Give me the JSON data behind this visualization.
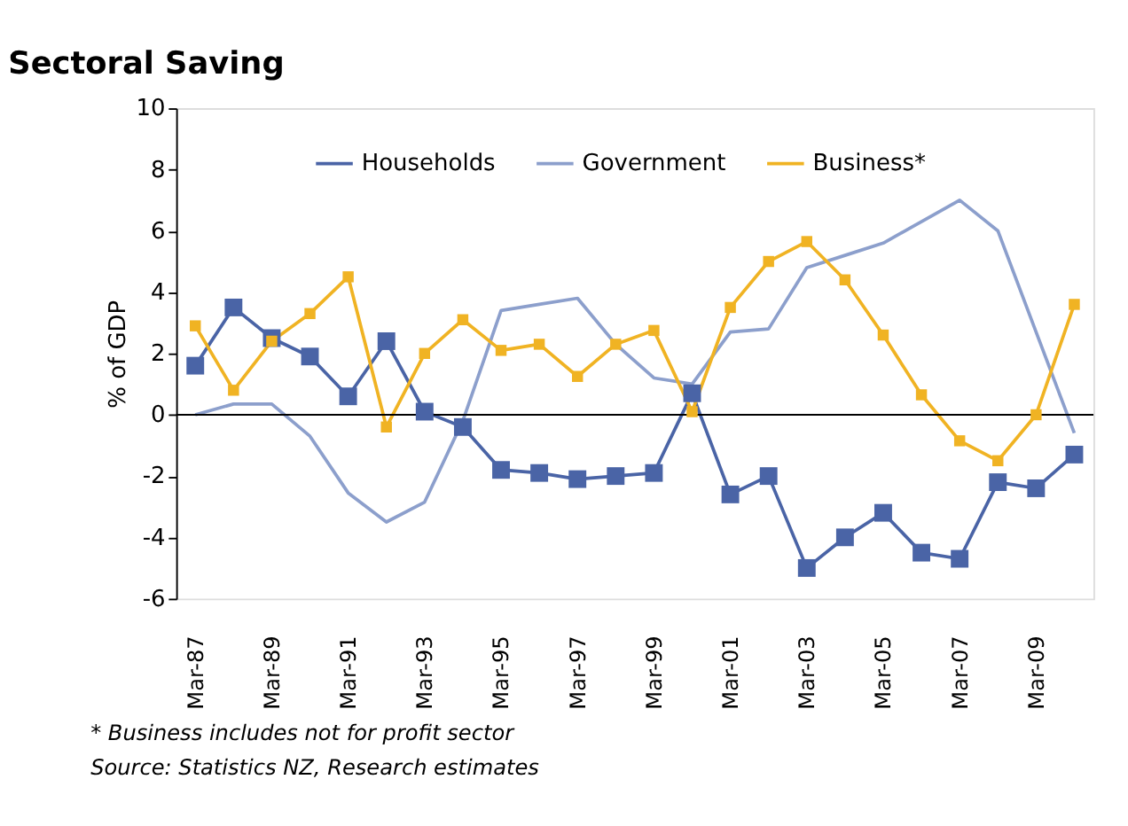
{
  "chart_data": {
    "type": "line",
    "title": "Sectoral Saving",
    "ylabel": "% of GDP",
    "categories": [
      "Mar-87",
      null,
      "Mar-89",
      null,
      "Mar-91",
      null,
      "Mar-93",
      null,
      "Mar-95",
      null,
      "Mar-97",
      null,
      "Mar-99",
      null,
      "Mar-01",
      null,
      "Mar-03",
      null,
      "Mar-05",
      null,
      "Mar-07",
      null,
      "Mar-09",
      null
    ],
    "series": [
      {
        "name": "Households",
        "color": "#4a64a6",
        "marker": "square",
        "values": [
          1.6,
          3.5,
          2.5,
          1.9,
          0.6,
          2.4,
          0.1,
          -0.4,
          -1.8,
          -1.9,
          -2.1,
          -2.0,
          -1.9,
          0.7,
          -2.6,
          -2.0,
          -5.0,
          -4.0,
          -3.2,
          -4.5,
          -4.7,
          -2.2,
          -2.4,
          -1.3
        ]
      },
      {
        "name": "Government",
        "color": "#8c9fcc",
        "marker": "none",
        "values": [
          0.0,
          0.35,
          0.35,
          -0.7,
          -2.55,
          -3.5,
          -2.85,
          -0.2,
          3.4,
          3.6,
          3.8,
          2.3,
          1.2,
          1.0,
          2.7,
          2.8,
          4.8,
          5.2,
          5.6,
          6.3,
          7.0,
          6.0,
          2.7,
          -0.6
        ]
      },
      {
        "name": "Business*",
        "color": "#f0b323",
        "marker": "square",
        "values": [
          2.9,
          0.8,
          2.4,
          3.3,
          4.5,
          -0.4,
          2.0,
          3.1,
          2.1,
          2.3,
          1.25,
          2.3,
          2.75,
          0.1,
          3.5,
          5.0,
          5.65,
          4.4,
          2.6,
          0.65,
          -0.85,
          -1.5,
          0.0,
          3.6
        ]
      }
    ],
    "ylim": [
      -6,
      10
    ],
    "yticks": [
      -6,
      -4,
      -2,
      0,
      2,
      4,
      6,
      8,
      10
    ],
    "ref_lines": [
      {
        "axis": "y",
        "value": 0,
        "color": "#000000"
      }
    ],
    "grid": false,
    "legend": "top",
    "annotations": [
      "* Business includes not for profit sector",
      "Source: Statistics NZ, Research estimates"
    ]
  }
}
